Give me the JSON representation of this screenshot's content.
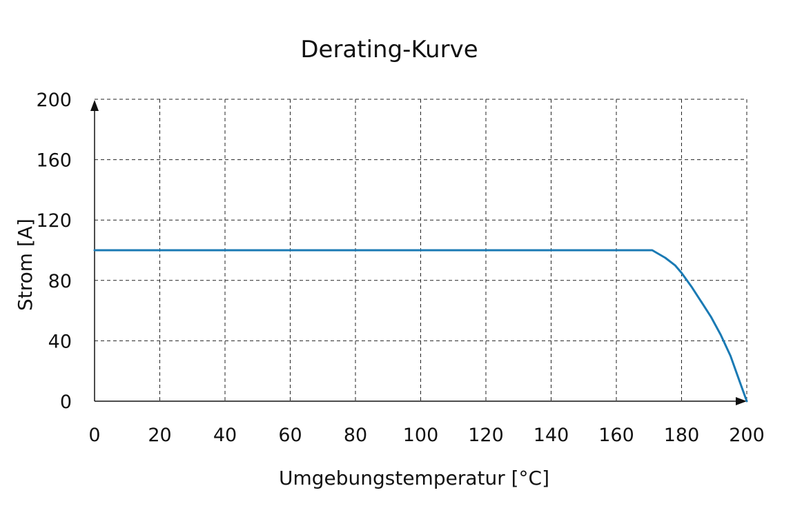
{
  "chart_data": {
    "type": "line",
    "title": "Derating-Kurve",
    "xlabel": "Umgebungstemperatur [°C]",
    "ylabel": "Strom [A]",
    "xlim": [
      0,
      200
    ],
    "ylim": [
      0,
      200
    ],
    "x_ticks": [
      0,
      20,
      40,
      60,
      80,
      100,
      120,
      140,
      160,
      180,
      200
    ],
    "y_ticks": [
      0,
      40,
      80,
      120,
      160,
      200
    ],
    "grid": true,
    "series": [
      {
        "color": "#1a7ab4",
        "x": [
          0,
          171,
          175,
          178,
          180,
          183,
          186,
          189,
          192,
          195,
          198,
          200
        ],
        "y": [
          100,
          100,
          95,
          90,
          85,
          76,
          66,
          56,
          44,
          30,
          12,
          0
        ]
      }
    ]
  }
}
